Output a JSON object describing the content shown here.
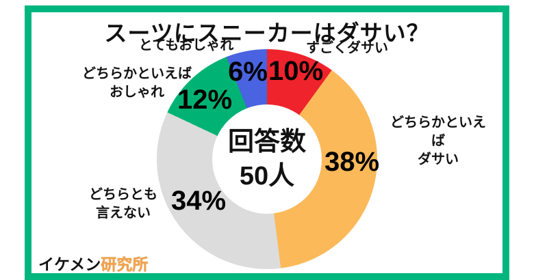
{
  "frame": {
    "border_color": "#00b67e"
  },
  "title": "スーツにスニーカーはダサい？",
  "center": {
    "line1": "回答数",
    "line2": "50人"
  },
  "watermark": {
    "prefix": "イケメン",
    "suffix": "研究所",
    "suffix_color": "#f3a14b"
  },
  "chart_data": {
    "type": "pie",
    "subtype": "donut",
    "title": "スーツにスニーカーはダサい？",
    "center_label": "回答数 50人",
    "total_responses": 50,
    "units": "%",
    "start_angle_deg": 0,
    "direction": "clockwise",
    "legend": "none (labels placed around donut)",
    "segments": [
      {
        "label": "すごくダサい",
        "display": "すごくダサい",
        "value": 10,
        "percent_label": "10%",
        "color": "#ee232b"
      },
      {
        "label": "どちらかといえばダサい",
        "display": "どちらかといえば\nダサい",
        "value": 38,
        "percent_label": "38%",
        "color": "#fbb95a"
      },
      {
        "label": "どちらとも言えない",
        "display": "どちらとも\n言えない",
        "value": 34,
        "percent_label": "34%",
        "color": "#dcdcdc"
      },
      {
        "label": "どちらかといえばおしゃれ",
        "display": "どちらかといえば\nおしゃれ",
        "value": 12,
        "percent_label": "12%",
        "color": "#00b375"
      },
      {
        "label": "とてもおしゃれ",
        "display": "とてもおしゃれ",
        "value": 6,
        "percent_label": "6%",
        "color": "#4a63e0"
      }
    ]
  }
}
